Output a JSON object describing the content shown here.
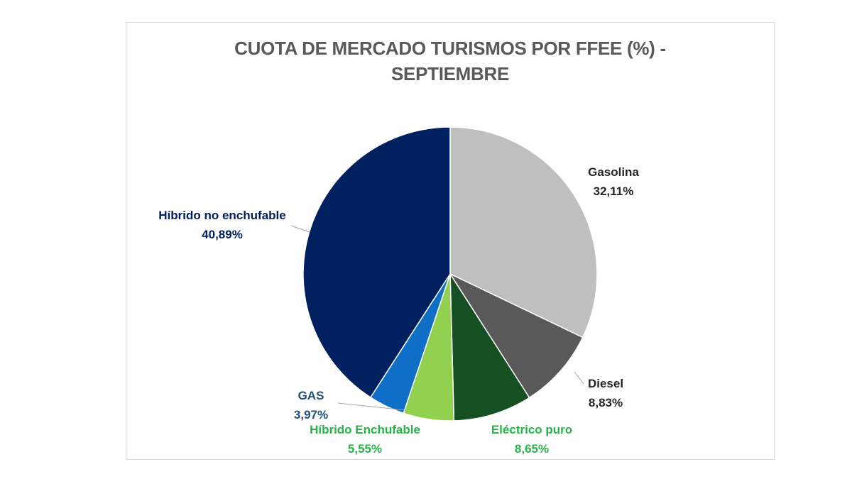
{
  "chart_data": {
    "type": "pie",
    "title_lines": [
      "CUOTA DE MERCADO TURISMOS POR FFEE (%) -",
      "SEPTIEMBRE"
    ],
    "slices": [
      {
        "name": "Gasolina",
        "value": 32.11,
        "label": "32,11%",
        "color": "#bfbfbf",
        "label_color": "#262626"
      },
      {
        "name": "Diesel",
        "value": 8.83,
        "label": "8,83%",
        "color": "#595959",
        "label_color": "#262626"
      },
      {
        "name": "Eléctrico puro",
        "value": 8.65,
        "label": "8,65%",
        "color": "#145021",
        "label_color": "#2ab24a"
      },
      {
        "name": "Híbrido Enchufable",
        "value": 5.55,
        "label": "5,55%",
        "color": "#92d050",
        "label_color": "#2ab24a"
      },
      {
        "name": "GAS",
        "value": 3.97,
        "label": "3,97%",
        "color": "#0f6fc6",
        "label_color": "#1f4e79"
      },
      {
        "name": "Híbrido no enchufable",
        "value": 40.89,
        "label": "40,89%",
        "color": "#002060",
        "label_color": "#002060"
      }
    ]
  }
}
